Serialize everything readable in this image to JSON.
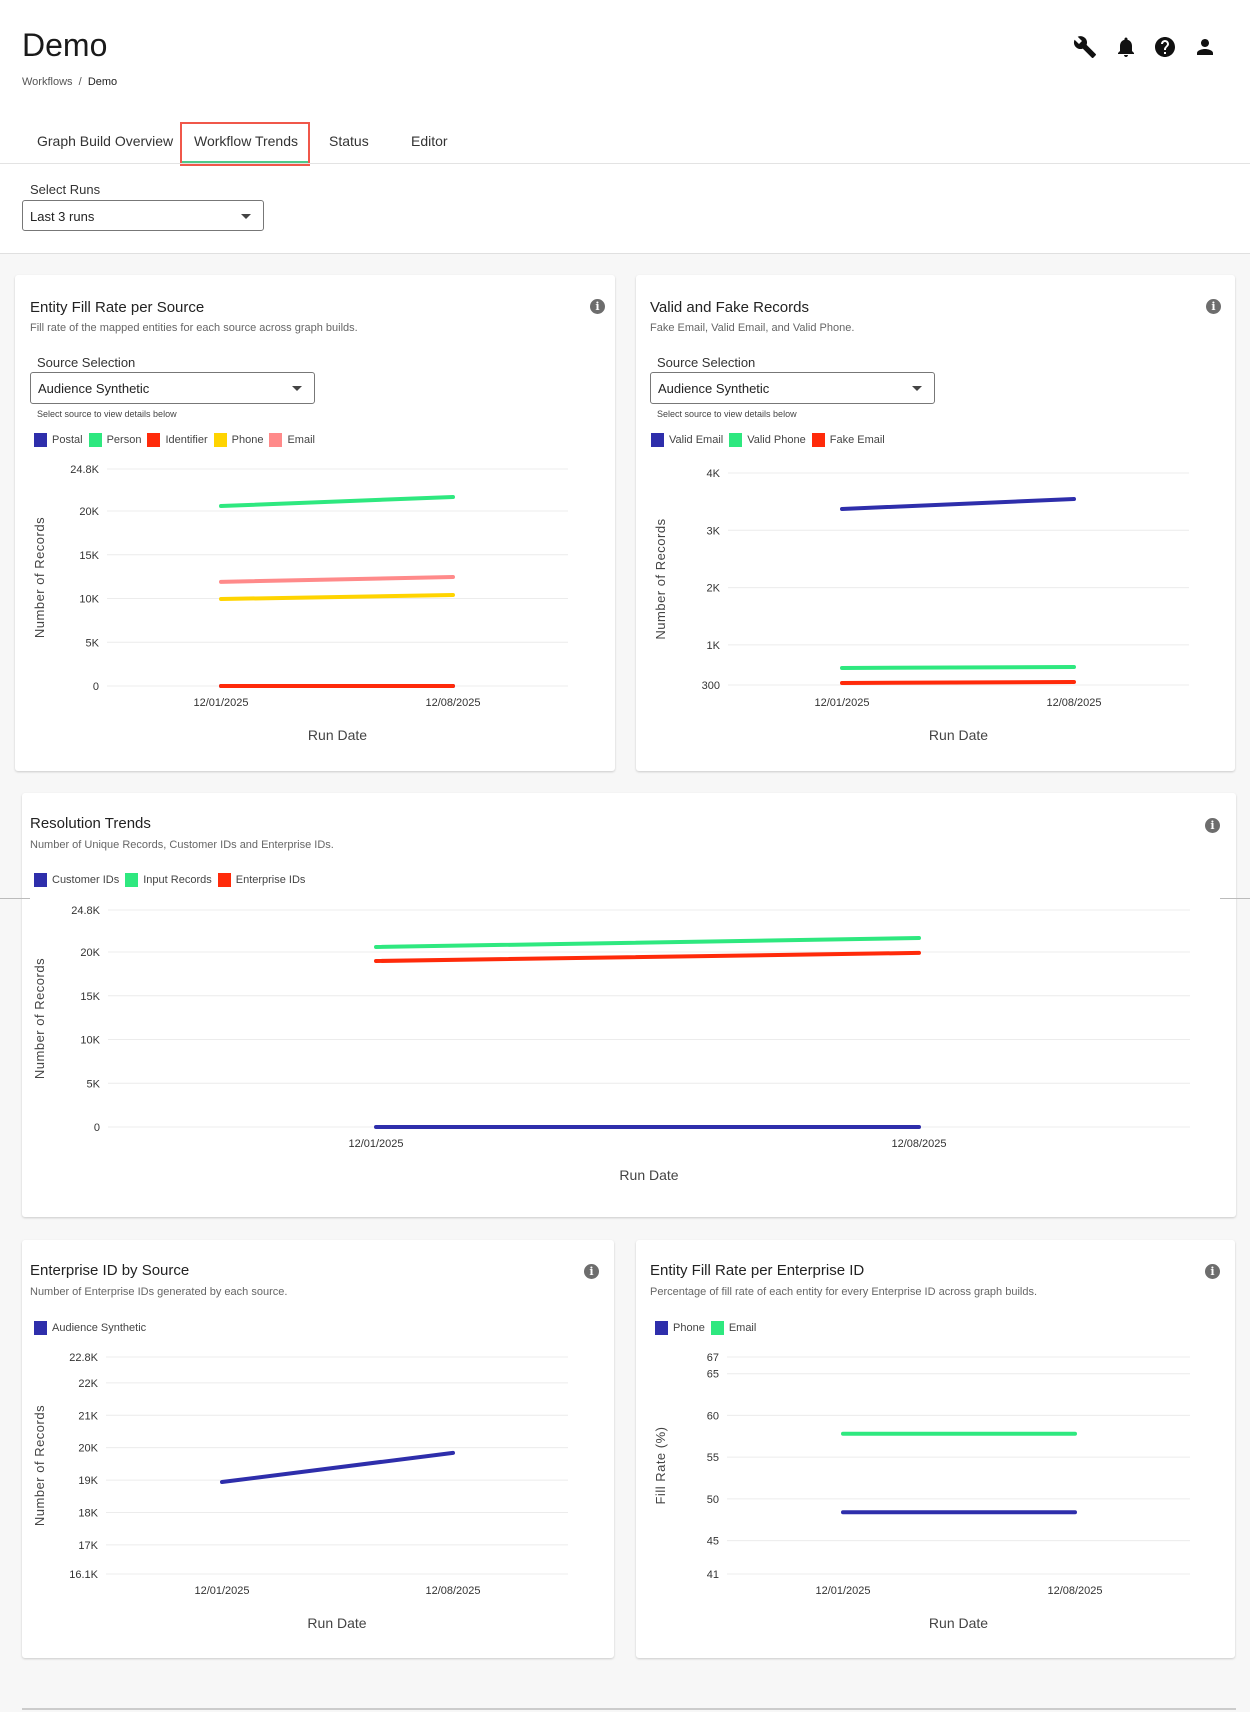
{
  "header": {
    "title": "Demo",
    "breadcrumb": [
      "Workflows",
      "Demo"
    ],
    "icons": [
      "wrench-icon",
      "bell-icon",
      "help-icon",
      "user-icon"
    ]
  },
  "tabs": [
    {
      "label": "Graph Build Overview",
      "active": false
    },
    {
      "label": "Workflow Trends",
      "active": true
    },
    {
      "label": "Status",
      "active": false
    },
    {
      "label": "Editor",
      "active": false
    }
  ],
  "select_runs": {
    "label": "Select Runs",
    "value": "Last 3 runs"
  },
  "colors": {
    "accent": "#4fc98a",
    "highlight": "#f0574a",
    "blue": "#2e2eab",
    "green": "#2ee87f",
    "red": "#ff2a0a",
    "yellow": "#ffd400",
    "pink": "#ff8a8a"
  },
  "cards": {
    "entity_fill": {
      "title": "Entity Fill Rate per Source",
      "subtitle": "Fill rate of the mapped entities for each source across graph builds.",
      "source_label": "Source Selection",
      "source_value": "Audience Synthetic",
      "helper": "Select source to view details below"
    },
    "valid_fake": {
      "title": "Valid and Fake Records",
      "subtitle": "Fake Email, Valid Email, and Valid Phone.",
      "source_label": "Source Selection",
      "source_value": "Audience Synthetic",
      "helper": "Select source to view details below"
    },
    "resolution": {
      "title": "Resolution Trends",
      "subtitle": "Number of Unique Records, Customer IDs and Enterprise IDs."
    },
    "enterprise_source": {
      "title": "Enterprise ID by Source",
      "subtitle": "Number of Enterprise IDs generated by each source."
    },
    "fill_enterprise": {
      "title": "Entity Fill Rate per Enterprise ID",
      "subtitle": "Percentage of fill rate of each entity for every Enterprise ID across graph builds."
    }
  },
  "chart_data": [
    {
      "id": "entity_fill",
      "type": "line",
      "xlabel": "Run Date",
      "ylabel": "Number of Records",
      "categories": [
        "12/01/2025",
        "12/08/2025"
      ],
      "ylim": [
        0,
        24800
      ],
      "yticks": [
        {
          "v": 0,
          "label": "0"
        },
        {
          "v": 5000,
          "label": "5K"
        },
        {
          "v": 10000,
          "label": "10K"
        },
        {
          "v": 15000,
          "label": "15K"
        },
        {
          "v": 20000,
          "label": "20K"
        },
        {
          "v": 24800,
          "label": "24.8K"
        }
      ],
      "grid": true,
      "legend": "top-left",
      "series": [
        {
          "name": "Postal",
          "color": "#2e2eab",
          "values": [
            0,
            0
          ]
        },
        {
          "name": "Person",
          "color": "#2ee87f",
          "values": [
            20570,
            21600
          ]
        },
        {
          "name": "Identifier",
          "color": "#ff2a0a",
          "values": [
            0,
            0
          ]
        },
        {
          "name": "Phone",
          "color": "#ffd400",
          "values": [
            9940,
            10400
          ]
        },
        {
          "name": "Email",
          "color": "#ff8a8a",
          "values": [
            11900,
            12460
          ]
        }
      ]
    },
    {
      "id": "valid_fake",
      "type": "line",
      "xlabel": "Run Date",
      "ylabel": "Number of Records",
      "categories": [
        "12/01/2025",
        "12/08/2025"
      ],
      "ylim": [
        300,
        4000
      ],
      "yticks": [
        {
          "v": 300,
          "label": "300"
        },
        {
          "v": 1000,
          "label": "1K"
        },
        {
          "v": 2000,
          "label": "2K"
        },
        {
          "v": 3000,
          "label": "3K"
        },
        {
          "v": 4000,
          "label": "4K"
        }
      ],
      "grid": true,
      "legend": "top-left",
      "series": [
        {
          "name": "Valid Email",
          "color": "#2e2eab",
          "values": [
            3372,
            3546
          ]
        },
        {
          "name": "Valid Phone",
          "color": "#2ee87f",
          "values": [
            597,
            614
          ]
        },
        {
          "name": "Fake Email",
          "color": "#ff2a0a",
          "values": [
            335,
            352
          ]
        }
      ]
    },
    {
      "id": "resolution",
      "type": "line",
      "xlabel": "Run Date",
      "ylabel": "Number of Records",
      "categories": [
        "12/01/2025",
        "12/08/2025"
      ],
      "ylim": [
        0,
        24800
      ],
      "yticks": [
        {
          "v": 0,
          "label": "0"
        },
        {
          "v": 5000,
          "label": "5K"
        },
        {
          "v": 10000,
          "label": "10K"
        },
        {
          "v": 15000,
          "label": "15K"
        },
        {
          "v": 20000,
          "label": "20K"
        },
        {
          "v": 24800,
          "label": "24.8K"
        }
      ],
      "grid": true,
      "legend": "top-left",
      "series": [
        {
          "name": "Customer IDs",
          "color": "#2e2eab",
          "values": [
            0,
            0
          ]
        },
        {
          "name": "Input Records",
          "color": "#2ee87f",
          "values": [
            20570,
            21600
          ]
        },
        {
          "name": "Enterprise IDs",
          "color": "#ff2a0a",
          "values": [
            18970,
            19900
          ]
        }
      ]
    },
    {
      "id": "enterprise_source",
      "type": "line",
      "xlabel": "Run Date",
      "ylabel": "Number of Records",
      "categories": [
        "12/01/2025",
        "12/08/2025"
      ],
      "ylim": [
        16100,
        22800
      ],
      "yticks": [
        {
          "v": 16100,
          "label": "16.1K"
        },
        {
          "v": 17000,
          "label": "17K"
        },
        {
          "v": 18000,
          "label": "18K"
        },
        {
          "v": 19000,
          "label": "19K"
        },
        {
          "v": 20000,
          "label": "20K"
        },
        {
          "v": 21000,
          "label": "21K"
        },
        {
          "v": 22000,
          "label": "22K"
        },
        {
          "v": 22800,
          "label": "22.8K"
        }
      ],
      "grid": true,
      "legend": "top-left",
      "series": [
        {
          "name": "Audience Synthetic",
          "color": "#2e2eab",
          "values": [
            18940,
            19840
          ]
        }
      ]
    },
    {
      "id": "fill_enterprise",
      "type": "line",
      "xlabel": "Run Date",
      "ylabel": "Fill Rate (%)",
      "categories": [
        "12/01/2025",
        "12/08/2025"
      ],
      "ylim": [
        41,
        67
      ],
      "yticks": [
        {
          "v": 41,
          "label": "41"
        },
        {
          "v": 45,
          "label": "45"
        },
        {
          "v": 50,
          "label": "50"
        },
        {
          "v": 55,
          "label": "55"
        },
        {
          "v": 60,
          "label": "60"
        },
        {
          "v": 65,
          "label": "65"
        },
        {
          "v": 67,
          "label": "67"
        }
      ],
      "grid": true,
      "legend": "top-left",
      "series": [
        {
          "name": "Phone",
          "color": "#2e2eab",
          "values": [
            48.4,
            48.4
          ]
        },
        {
          "name": "Email",
          "color": "#2ee87f",
          "values": [
            57.8,
            57.8
          ]
        }
      ]
    }
  ]
}
